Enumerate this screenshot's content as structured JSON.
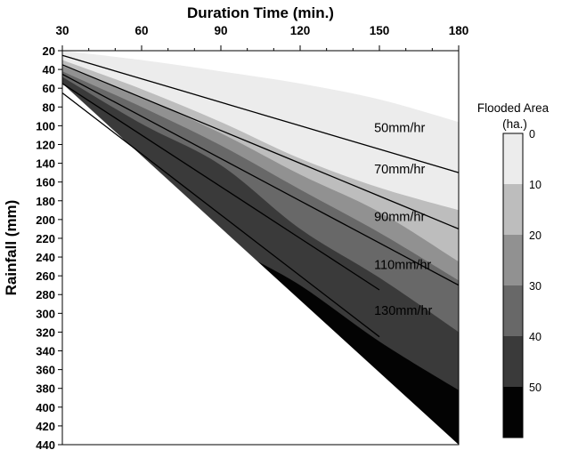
{
  "chart_data": {
    "type": "area",
    "title": "",
    "xlabel": "Duration Time (min.)",
    "ylabel": "Rainfall (mm)",
    "x_axis_position": "top",
    "y_axis_inverted": true,
    "xlim": [
      30,
      180
    ],
    "ylim": [
      20,
      440
    ],
    "x_ticks": [
      "30",
      "60",
      "90",
      "120",
      "150",
      "180"
    ],
    "y_ticks": [
      "20",
      "40",
      "60",
      "80",
      "100",
      "120",
      "140",
      "160",
      "180",
      "200",
      "220",
      "240",
      "260",
      "280",
      "300",
      "320",
      "340",
      "360",
      "380",
      "400",
      "420",
      "440"
    ],
    "grid": false,
    "colorbar": {
      "title": [
        "Flooded Area",
        "(ha.)"
      ],
      "levels": [
        "0",
        "10",
        "20",
        "30",
        "40",
        "50"
      ],
      "colors": [
        "#ececec",
        "#bdbdbd",
        "#919191",
        "#686868",
        "#3a3a3a",
        "#030303"
      ]
    },
    "flood_bands": [
      {
        "range": "0-10",
        "color": "#ececec",
        "lower_boundary": {
          "x": [
            30,
            60,
            90,
            120,
            150,
            180
          ],
          "y": [
            20,
            30,
            42,
            55,
            72,
            96
          ]
        }
      },
      {
        "range": "10-20",
        "color": "#bdbdbd",
        "lower_boundary": {
          "x": [
            30,
            60,
            90,
            120,
            150,
            180
          ],
          "y": [
            30,
            61,
            96,
            135,
            166,
            190
          ]
        }
      },
      {
        "range": "20-30",
        "color": "#919191",
        "lower_boundary": {
          "x": [
            30,
            60,
            90,
            120,
            150,
            180
          ],
          "y": [
            36,
            70,
            108,
            152,
            192,
            245
          ]
        }
      },
      {
        "range": "30-40",
        "color": "#686868",
        "lower_boundary": {
          "x": [
            30,
            60,
            90,
            120,
            150,
            180
          ],
          "y": [
            42,
            80,
            121,
            168,
            214,
            265
          ]
        }
      },
      {
        "range": "40-50",
        "color": "#3a3a3a",
        "lower_boundary": {
          "x": [
            30,
            60,
            90,
            120,
            150,
            180
          ],
          "y": [
            48,
            98,
            142,
            210,
            262,
            320
          ]
        }
      },
      {
        "range": "50+",
        "color": "#030303",
        "lower_boundary": {
          "x": [
            30,
            60,
            90,
            120,
            150,
            180
          ],
          "y": [
            56,
            140,
            220,
            270,
            330,
            382
          ]
        }
      }
    ],
    "diagonal_boundary": {
      "x": [
        30,
        180
      ],
      "y": [
        55,
        440
      ]
    },
    "series": [
      {
        "name": "50mm/hr",
        "x": [
          30,
          60,
          90,
          120,
          150,
          180
        ],
        "y": [
          25,
          50,
          75,
          100,
          125,
          150
        ]
      },
      {
        "name": "70mm/hr",
        "x": [
          30,
          60,
          90,
          120,
          150,
          180
        ],
        "y": [
          35,
          70,
          105,
          140,
          175,
          210
        ]
      },
      {
        "name": "90mm/hr",
        "x": [
          30,
          60,
          90,
          120,
          150,
          180
        ],
        "y": [
          45,
          90,
          135,
          180,
          225,
          270
        ]
      },
      {
        "name": "110mm/hr",
        "x": [
          30,
          60,
          90,
          120,
          150
        ],
        "y": [
          55,
          110,
          165,
          220,
          275
        ]
      },
      {
        "name": "130mm/hr",
        "x": [
          30,
          60,
          90,
          120,
          150
        ],
        "y": [
          65,
          130,
          195,
          260,
          325
        ]
      }
    ],
    "line_labels": [
      {
        "text": "50mm/hr",
        "x": 148,
        "y": 102
      },
      {
        "text": "70mm/hr",
        "x": 148,
        "y": 146
      },
      {
        "text": "90mm/hr",
        "x": 148,
        "y": 197
      },
      {
        "text": "110mm/hr",
        "x": 148,
        "y": 248
      },
      {
        "text": "130mm/hr",
        "x": 148,
        "y": 297
      }
    ]
  }
}
